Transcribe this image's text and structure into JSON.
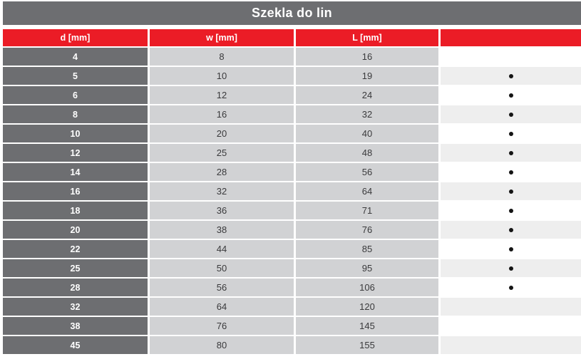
{
  "title": "Szekla do lin",
  "table": {
    "headers": [
      "d [mm]",
      "w [mm]",
      "L [mm]",
      ""
    ],
    "rows": [
      {
        "d": "4",
        "w": "8",
        "L": "16",
        "dot": false
      },
      {
        "d": "5",
        "w": "10",
        "L": "19",
        "dot": true
      },
      {
        "d": "6",
        "w": "12",
        "L": "24",
        "dot": true
      },
      {
        "d": "8",
        "w": "16",
        "L": "32",
        "dot": true
      },
      {
        "d": "10",
        "w": "20",
        "L": "40",
        "dot": true
      },
      {
        "d": "12",
        "w": "25",
        "L": "48",
        "dot": true
      },
      {
        "d": "14",
        "w": "28",
        "L": "56",
        "dot": true
      },
      {
        "d": "16",
        "w": "32",
        "L": "64",
        "dot": true
      },
      {
        "d": "18",
        "w": "36",
        "L": "71",
        "dot": true
      },
      {
        "d": "20",
        "w": "38",
        "L": "76",
        "dot": true
      },
      {
        "d": "22",
        "w": "44",
        "L": "85",
        "dot": true
      },
      {
        "d": "25",
        "w": "50",
        "L": "95",
        "dot": true
      },
      {
        "d": "28",
        "w": "56",
        "L": "106",
        "dot": true
      },
      {
        "d": "32",
        "w": "64",
        "L": "120",
        "dot": false
      },
      {
        "d": "38",
        "w": "76",
        "L": "145",
        "dot": false
      },
      {
        "d": "45",
        "w": "80",
        "L": "155",
        "dot": false
      }
    ]
  },
  "colors": {
    "header_red": "#eb1c26",
    "title_gray": "#6d6e71",
    "value_cell_gray": "#d1d2d4",
    "stripe_gray": "#eeeeee",
    "value_text": "#3a3a3c",
    "dot_black": "#141414"
  },
  "chart_data": {
    "type": "table",
    "title": "Szekla do lin",
    "columns": [
      "d [mm]",
      "w [mm]",
      "L [mm]",
      ""
    ],
    "rows": [
      [
        4,
        8,
        16,
        ""
      ],
      [
        5,
        10,
        19,
        "•"
      ],
      [
        6,
        12,
        24,
        "•"
      ],
      [
        8,
        16,
        32,
        "•"
      ],
      [
        10,
        20,
        40,
        "•"
      ],
      [
        12,
        25,
        48,
        "•"
      ],
      [
        14,
        28,
        56,
        "•"
      ],
      [
        16,
        32,
        64,
        "•"
      ],
      [
        18,
        36,
        71,
        "•"
      ],
      [
        20,
        38,
        76,
        "•"
      ],
      [
        22,
        44,
        85,
        "•"
      ],
      [
        25,
        50,
        95,
        "•"
      ],
      [
        28,
        56,
        106,
        "•"
      ],
      [
        32,
        64,
        120,
        ""
      ],
      [
        38,
        76,
        145,
        ""
      ],
      [
        45,
        80,
        155,
        ""
      ]
    ]
  }
}
